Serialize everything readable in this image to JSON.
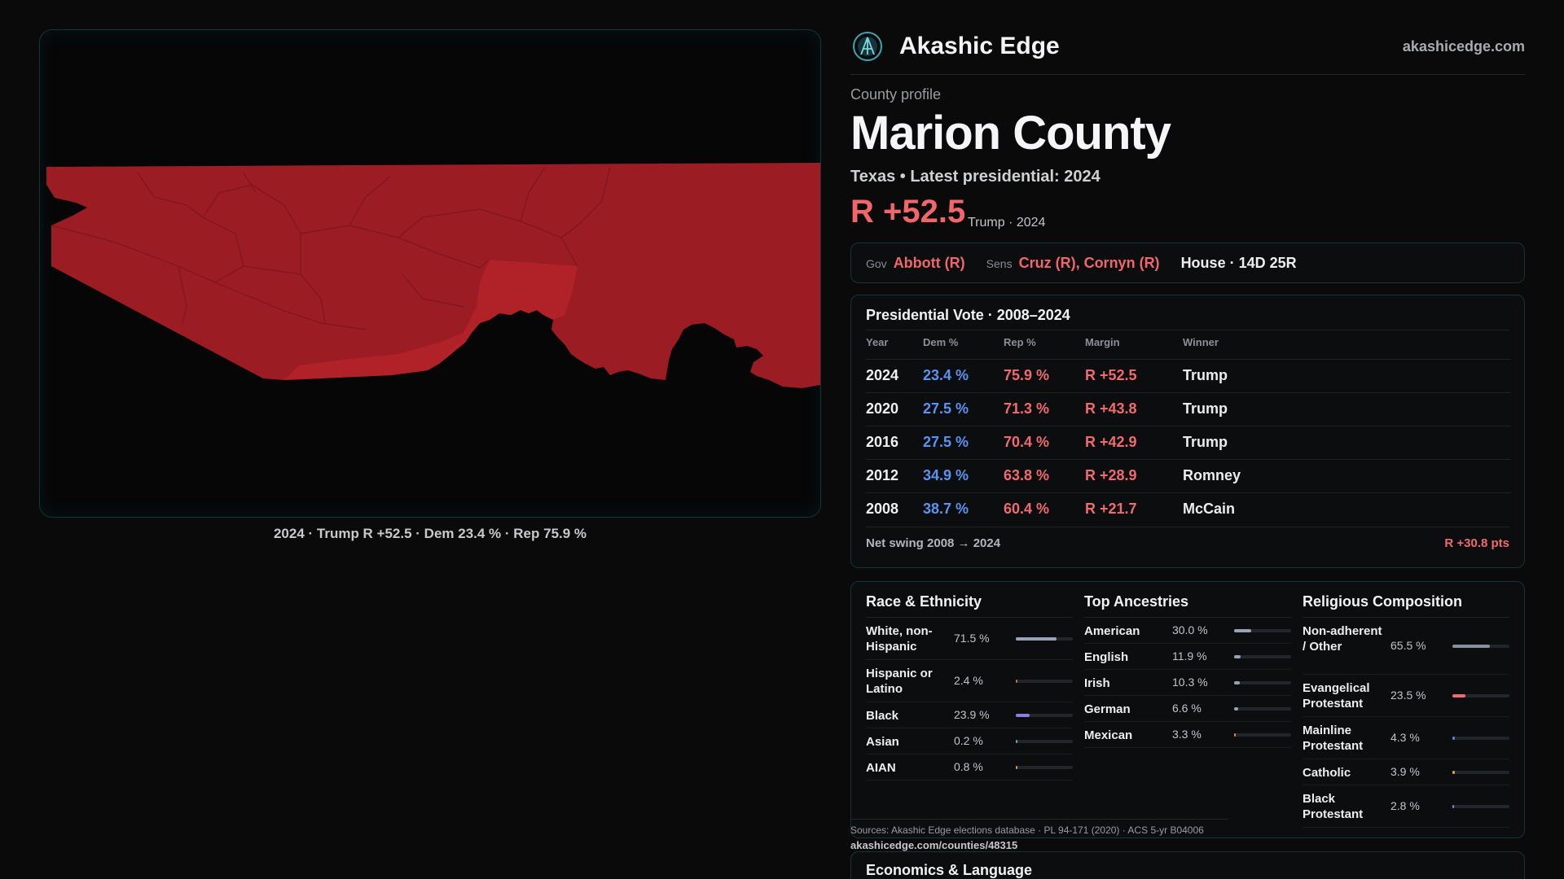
{
  "header": {
    "brand": "Akashic Edge",
    "site": "akashicedge.com"
  },
  "profile": {
    "eyebrow": "County profile",
    "county": "Marion County",
    "subtitle": "Texas • Latest presidential: 2024",
    "margin": "R +52.5",
    "margin_note": "Trump · 2024"
  },
  "officials": {
    "gov_label": "Gov",
    "gov": "Abbott (R)",
    "sens_label": "Sens",
    "sens": "Cruz (R), Cornyn (R)",
    "house": "House · 14D 25R"
  },
  "map": {
    "caption": "2024 · Trump R +52.5 · Dem 23.4 % · Rep 75.9 %",
    "fill_color": "#9b1c22",
    "highlight_color": "#b02228"
  },
  "presidential": {
    "title": "Presidential Vote · 2008–2024",
    "headers": [
      "Year",
      "Dem %",
      "Rep %",
      "Margin",
      "Winner"
    ],
    "rows": [
      {
        "year": "2024",
        "dem": "23.4 %",
        "rep": "75.9 %",
        "margin": "R +52.5",
        "winner": "Trump"
      },
      {
        "year": "2020",
        "dem": "27.5 %",
        "rep": "71.3 %",
        "margin": "R +43.8",
        "winner": "Trump"
      },
      {
        "year": "2016",
        "dem": "27.5 %",
        "rep": "70.4 %",
        "margin": "R +42.9",
        "winner": "Trump"
      },
      {
        "year": "2012",
        "dem": "34.9 %",
        "rep": "63.8 %",
        "margin": "R +28.9",
        "winner": "Romney"
      },
      {
        "year": "2008",
        "dem": "38.7 %",
        "rep": "60.4 %",
        "margin": "R +21.7",
        "winner": "McCain"
      }
    ],
    "swing_label": "Net swing 2008 → 2024",
    "swing_value": "R +30.8 pts"
  },
  "race": {
    "title": "Race & Ethnicity",
    "rows": [
      {
        "name": "White, non-Hispanic",
        "pct": "71.5 %",
        "value": 71.5,
        "color": "#9aa3b5"
      },
      {
        "name": "Hispanic or Latino",
        "pct": "2.4 %",
        "value": 2.4,
        "color": "#e0674f"
      },
      {
        "name": "Black",
        "pct": "23.9 %",
        "value": 23.9,
        "color": "#8a7ee8"
      },
      {
        "name": "Asian",
        "pct": "0.2 %",
        "value": 0.2,
        "color": "#5ab0a0"
      },
      {
        "name": "AIAN",
        "pct": "0.8 %",
        "value": 0.8,
        "color": "#c9a052"
      }
    ]
  },
  "ancestry": {
    "title": "Top Ancestries",
    "rows": [
      {
        "name": "American",
        "pct": "30.0 %",
        "value": 30.0,
        "color": "#9aa3b5"
      },
      {
        "name": "English",
        "pct": "11.9 %",
        "value": 11.9,
        "color": "#9aa3b5"
      },
      {
        "name": "Irish",
        "pct": "10.3 %",
        "value": 10.3,
        "color": "#9aa3b5"
      },
      {
        "name": "German",
        "pct": "6.6 %",
        "value": 6.6,
        "color": "#9aa3b5"
      },
      {
        "name": "Mexican",
        "pct": "3.3 %",
        "value": 3.3,
        "color": "#e08a3c"
      }
    ]
  },
  "religion": {
    "title": "Religious Composition",
    "rows": [
      {
        "name": "Non-adherent / Other",
        "pct": "65.5 %",
        "value": 65.5,
        "color": "#8a8f9c"
      },
      {
        "name": "Evangelical Protestant",
        "pct": "23.5 %",
        "value": 23.5,
        "color": "#ef6b6e"
      },
      {
        "name": "Mainline Protestant",
        "pct": "4.3 %",
        "value": 4.3,
        "color": "#5b7ff0"
      },
      {
        "name": "Catholic",
        "pct": "3.9 %",
        "value": 3.9,
        "color": "#e0a43c"
      },
      {
        "name": "Black Protestant",
        "pct": "2.8 %",
        "value": 2.8,
        "color": "#8a7ee8"
      }
    ]
  },
  "sources": {
    "text": "Sources: Akashic Edge elections database · PL 94-171 (2020) · ACS 5-yr B04006",
    "url": "akashicedge.com/counties/48315"
  },
  "economics": {
    "title": "Economics & Language"
  }
}
